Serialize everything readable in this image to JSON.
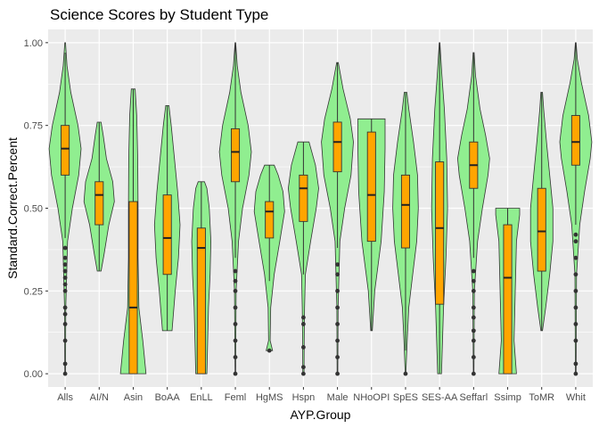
{
  "chart_data": {
    "type": "violin",
    "title": "Science Scores by Student Type",
    "xlabel": "AYP.Group",
    "ylabel": "Standard.Correct.Percent",
    "ylim": [
      -0.04,
      1.04
    ],
    "yticks": [
      0.0,
      0.25,
      0.5,
      0.75,
      1.0
    ],
    "ytick_labels": [
      "0.00",
      "0.25",
      "0.50",
      "0.75",
      "1.00"
    ],
    "grid": true,
    "background": "#ebebeb",
    "violin_fill": "#90ee90",
    "box_fill": "#ffa500",
    "categories": [
      "Alls",
      "AI/N",
      "Asin",
      "BoAA",
      "EnLL",
      "Feml",
      "HgMS",
      "Hspn",
      "Male",
      "NHoOPI",
      "SpES",
      "SES-AA",
      "Seffarl",
      "Ssimp",
      "ToMR",
      "Whit"
    ],
    "groups": [
      {
        "name": "Alls",
        "min": 0.0,
        "q1": 0.6,
        "median": 0.68,
        "q3": 0.75,
        "max": 1.0,
        "wmin": 0.41,
        "wmax": 0.97,
        "density": [
          [
            0.0,
            0.02
          ],
          [
            0.2,
            0.04
          ],
          [
            0.4,
            0.15
          ],
          [
            0.5,
            0.45
          ],
          [
            0.6,
            0.85
          ],
          [
            0.68,
            1.0
          ],
          [
            0.75,
            0.8
          ],
          [
            0.85,
            0.35
          ],
          [
            0.93,
            0.12
          ],
          [
            1.0,
            0.02
          ]
        ],
        "outliers": [
          0.0,
          0.03,
          0.1,
          0.15,
          0.18,
          0.2,
          0.25,
          0.27,
          0.29,
          0.31,
          0.33,
          0.35,
          0.38
        ]
      },
      {
        "name": "AI/N",
        "min": 0.31,
        "q1": 0.45,
        "median": 0.54,
        "q3": 0.58,
        "max": 0.76,
        "wmin": 0.31,
        "wmax": 0.76,
        "density": [
          [
            0.31,
            0.12
          ],
          [
            0.36,
            0.3
          ],
          [
            0.45,
            0.6
          ],
          [
            0.52,
            0.95
          ],
          [
            0.58,
            0.85
          ],
          [
            0.65,
            0.45
          ],
          [
            0.72,
            0.25
          ],
          [
            0.76,
            0.12
          ]
        ],
        "outliers": []
      },
      {
        "name": "Asin",
        "min": 0.0,
        "q1": 0.0,
        "median": 0.2,
        "q3": 0.52,
        "max": 0.86,
        "wmin": 0.0,
        "wmax": 0.86,
        "density": [
          [
            0.0,
            0.8
          ],
          [
            0.1,
            0.6
          ],
          [
            0.2,
            0.35
          ],
          [
            0.35,
            0.3
          ],
          [
            0.5,
            0.3
          ],
          [
            0.65,
            0.28
          ],
          [
            0.78,
            0.22
          ],
          [
            0.86,
            0.12
          ]
        ],
        "outliers": []
      },
      {
        "name": "BoAA",
        "min": 0.13,
        "q1": 0.3,
        "median": 0.41,
        "q3": 0.54,
        "max": 0.81,
        "wmin": 0.13,
        "wmax": 0.81,
        "density": [
          [
            0.13,
            0.3
          ],
          [
            0.25,
            0.5
          ],
          [
            0.35,
            0.7
          ],
          [
            0.45,
            0.8
          ],
          [
            0.55,
            0.65
          ],
          [
            0.65,
            0.45
          ],
          [
            0.75,
            0.25
          ],
          [
            0.81,
            0.1
          ]
        ],
        "outliers": []
      },
      {
        "name": "EnLL",
        "min": 0.0,
        "q1": 0.0,
        "median": 0.38,
        "q3": 0.44,
        "max": 0.58,
        "wmin": 0.0,
        "wmax": 0.58,
        "density": [
          [
            0.0,
            0.35
          ],
          [
            0.1,
            0.4
          ],
          [
            0.2,
            0.45
          ],
          [
            0.3,
            0.55
          ],
          [
            0.4,
            0.6
          ],
          [
            0.5,
            0.5
          ],
          [
            0.56,
            0.35
          ],
          [
            0.58,
            0.2
          ]
        ],
        "outliers": []
      },
      {
        "name": "Feml",
        "min": 0.0,
        "q1": 0.58,
        "median": 0.67,
        "q3": 0.74,
        "max": 1.0,
        "wmin": 0.35,
        "wmax": 1.0,
        "density": [
          [
            0.0,
            0.02
          ],
          [
            0.25,
            0.05
          ],
          [
            0.4,
            0.2
          ],
          [
            0.5,
            0.45
          ],
          [
            0.6,
            0.85
          ],
          [
            0.67,
            1.0
          ],
          [
            0.75,
            0.8
          ],
          [
            0.85,
            0.35
          ],
          [
            0.93,
            0.12
          ],
          [
            1.0,
            0.02
          ]
        ],
        "outliers": [
          0.0,
          0.05,
          0.1,
          0.15,
          0.2,
          0.25,
          0.28,
          0.31
        ]
      },
      {
        "name": "HgMS",
        "min": 0.07,
        "q1": 0.41,
        "median": 0.49,
        "q3": 0.52,
        "max": 0.63,
        "wmin": 0.28,
        "wmax": 0.63,
        "density": [
          [
            0.07,
            0.2
          ],
          [
            0.1,
            0.05
          ],
          [
            0.2,
            0.08
          ],
          [
            0.3,
            0.3
          ],
          [
            0.4,
            0.65
          ],
          [
            0.49,
            0.95
          ],
          [
            0.55,
            0.85
          ],
          [
            0.6,
            0.55
          ],
          [
            0.63,
            0.3
          ]
        ],
        "outliers": [
          0.07
        ]
      },
      {
        "name": "Hspn",
        "min": 0.0,
        "q1": 0.46,
        "median": 0.56,
        "q3": 0.6,
        "max": 0.7,
        "wmin": 0.3,
        "wmax": 0.7,
        "density": [
          [
            0.0,
            0.04
          ],
          [
            0.1,
            0.05
          ],
          [
            0.2,
            0.07
          ],
          [
            0.3,
            0.12
          ],
          [
            0.4,
            0.45
          ],
          [
            0.5,
            0.8
          ],
          [
            0.56,
            0.95
          ],
          [
            0.63,
            0.75
          ],
          [
            0.7,
            0.35
          ]
        ],
        "outliers": [
          0.0,
          0.02,
          0.08,
          0.15,
          0.17
        ]
      },
      {
        "name": "Male",
        "min": 0.0,
        "q1": 0.61,
        "median": 0.7,
        "q3": 0.76,
        "max": 0.94,
        "wmin": 0.38,
        "wmax": 0.94,
        "density": [
          [
            0.0,
            0.02
          ],
          [
            0.2,
            0.04
          ],
          [
            0.4,
            0.15
          ],
          [
            0.5,
            0.45
          ],
          [
            0.6,
            0.85
          ],
          [
            0.7,
            1.0
          ],
          [
            0.77,
            0.8
          ],
          [
            0.86,
            0.35
          ],
          [
            0.94,
            0.05
          ]
        ],
        "outliers": [
          0.0,
          0.05,
          0.1,
          0.15,
          0.2,
          0.25,
          0.3,
          0.33
        ]
      },
      {
        "name": "NHoOPI",
        "min": 0.13,
        "q1": 0.4,
        "median": 0.54,
        "q3": 0.73,
        "max": 0.77,
        "wmin": 0.13,
        "wmax": 0.77,
        "density": [
          [
            0.13,
            0.05
          ],
          [
            0.25,
            0.2
          ],
          [
            0.4,
            0.6
          ],
          [
            0.55,
            0.8
          ],
          [
            0.68,
            0.85
          ],
          [
            0.73,
            0.85
          ],
          [
            0.77,
            0.85
          ]
        ],
        "outliers": []
      },
      {
        "name": "SpES",
        "min": 0.0,
        "q1": 0.38,
        "median": 0.51,
        "q3": 0.6,
        "max": 0.85,
        "wmin": 0.07,
        "wmax": 0.85,
        "density": [
          [
            0.0,
            0.02
          ],
          [
            0.1,
            0.1
          ],
          [
            0.2,
            0.2
          ],
          [
            0.3,
            0.45
          ],
          [
            0.4,
            0.7
          ],
          [
            0.5,
            0.8
          ],
          [
            0.6,
            0.75
          ],
          [
            0.7,
            0.5
          ],
          [
            0.8,
            0.2
          ],
          [
            0.85,
            0.08
          ]
        ],
        "outliers": [
          0.0
        ]
      },
      {
        "name": "SES-AA",
        "min": 0.0,
        "q1": 0.21,
        "median": 0.44,
        "q3": 0.64,
        "max": 1.0,
        "wmin": 0.0,
        "wmax": 1.0,
        "density": [
          [
            0.0,
            0.12
          ],
          [
            0.2,
            0.25
          ],
          [
            0.35,
            0.4
          ],
          [
            0.5,
            0.5
          ],
          [
            0.65,
            0.45
          ],
          [
            0.8,
            0.3
          ],
          [
            0.9,
            0.15
          ],
          [
            1.0,
            0.02
          ]
        ],
        "outliers": []
      },
      {
        "name": "Seffarl",
        "min": 0.0,
        "q1": 0.56,
        "median": 0.63,
        "q3": 0.7,
        "max": 0.97,
        "wmin": 0.35,
        "wmax": 0.97,
        "density": [
          [
            0.0,
            0.02
          ],
          [
            0.25,
            0.05
          ],
          [
            0.4,
            0.25
          ],
          [
            0.5,
            0.55
          ],
          [
            0.6,
            0.9
          ],
          [
            0.65,
            1.0
          ],
          [
            0.72,
            0.75
          ],
          [
            0.8,
            0.4
          ],
          [
            0.9,
            0.12
          ],
          [
            0.97,
            0.03
          ]
        ],
        "outliers": [
          0.0,
          0.05,
          0.1,
          0.13,
          0.17,
          0.2,
          0.25,
          0.28,
          0.31
        ]
      },
      {
        "name": "Ssimp",
        "min": 0.0,
        "q1": 0.0,
        "median": 0.29,
        "q3": 0.45,
        "max": 0.5,
        "wmin": 0.0,
        "wmax": 0.5,
        "density": [
          [
            0.0,
            0.55
          ],
          [
            0.1,
            0.4
          ],
          [
            0.2,
            0.45
          ],
          [
            0.3,
            0.5
          ],
          [
            0.4,
            0.55
          ],
          [
            0.48,
            0.75
          ],
          [
            0.5,
            0.75
          ]
        ],
        "outliers": []
      },
      {
        "name": "ToMR",
        "min": 0.13,
        "q1": 0.31,
        "median": 0.43,
        "q3": 0.56,
        "max": 0.85,
        "wmin": 0.13,
        "wmax": 0.85,
        "density": [
          [
            0.13,
            0.05
          ],
          [
            0.2,
            0.25
          ],
          [
            0.3,
            0.5
          ],
          [
            0.4,
            0.7
          ],
          [
            0.5,
            0.7
          ],
          [
            0.6,
            0.5
          ],
          [
            0.7,
            0.3
          ],
          [
            0.8,
            0.12
          ],
          [
            0.85,
            0.05
          ]
        ],
        "outliers": []
      },
      {
        "name": "Whit",
        "min": 0.0,
        "q1": 0.63,
        "median": 0.7,
        "q3": 0.78,
        "max": 1.0,
        "wmin": 0.45,
        "wmax": 1.0,
        "density": [
          [
            0.0,
            0.02
          ],
          [
            0.3,
            0.05
          ],
          [
            0.45,
            0.25
          ],
          [
            0.55,
            0.55
          ],
          [
            0.65,
            0.9
          ],
          [
            0.7,
            1.0
          ],
          [
            0.78,
            0.8
          ],
          [
            0.88,
            0.35
          ],
          [
            0.95,
            0.1
          ],
          [
            1.0,
            0.02
          ]
        ],
        "outliers": [
          0.0,
          0.03,
          0.1,
          0.15,
          0.2,
          0.25,
          0.3,
          0.35,
          0.4,
          0.42
        ]
      }
    ]
  }
}
